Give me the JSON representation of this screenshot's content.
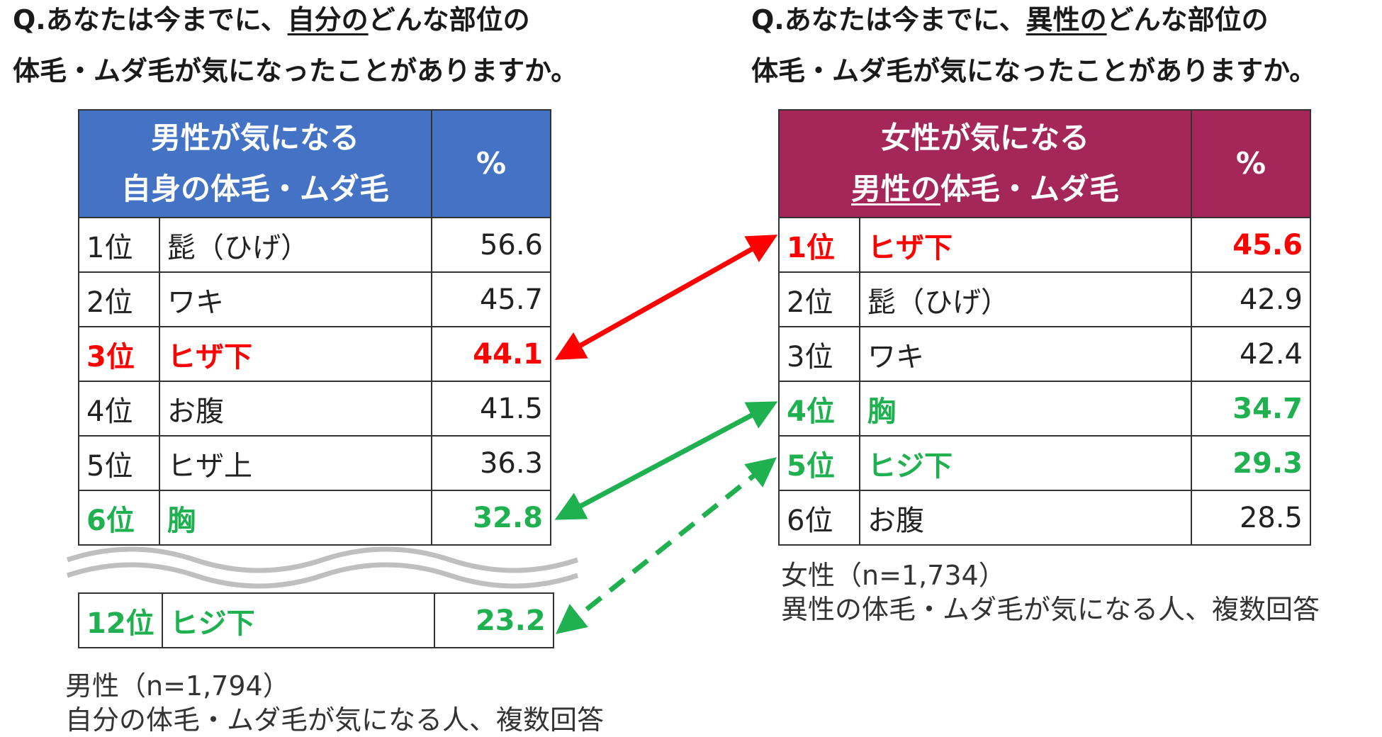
{
  "left": {
    "question_line1_a": "Q.あなたは今までに、",
    "question_line1_ul": "自分の",
    "question_line1_b": "どんな部位の",
    "question_line2": "体毛・ムダ毛が気になったことがありますか。",
    "header_line1": "男性が気になる",
    "header_line2": "自身の体毛・ムダ毛",
    "header_pct": "%",
    "rows": [
      {
        "rank": "1位",
        "item": "髭（ひげ）",
        "pct": "56.6"
      },
      {
        "rank": "2位",
        "item": "ワキ",
        "pct": "45.7"
      },
      {
        "rank": "3位",
        "item": "ヒザ下",
        "pct": "44.1"
      },
      {
        "rank": "4位",
        "item": "お腹",
        "pct": "41.5"
      },
      {
        "rank": "5位",
        "item": "ヒザ上",
        "pct": "36.3"
      },
      {
        "rank": "6位",
        "item": "胸",
        "pct": "32.8"
      }
    ],
    "extra_row": {
      "rank": "12位",
      "item": "ヒジ下",
      "pct": "23.2"
    },
    "note_line1": "男性（n=1,794）",
    "note_line2": "自分の体毛・ムダ毛が気になる人、複数回答"
  },
  "right": {
    "question_line1_a": "Q.あなたは今までに、",
    "question_line1_ul": "異性の",
    "question_line1_b": "どんな部位の",
    "question_line2": "体毛・ムダ毛が気になったことがありますか。",
    "header_line1": "女性が気になる",
    "header_line2_ul": "男性の",
    "header_line2_rest": "体毛・ムダ毛",
    "header_pct": "%",
    "rows": [
      {
        "rank": "1位",
        "item": "ヒザ下",
        "pct": "45.6"
      },
      {
        "rank": "2位",
        "item": "髭（ひげ）",
        "pct": "42.9"
      },
      {
        "rank": "3位",
        "item": "ワキ",
        "pct": "42.4"
      },
      {
        "rank": "4位",
        "item": "胸",
        "pct": "34.7"
      },
      {
        "rank": "5位",
        "item": "ヒジ下",
        "pct": "29.3"
      },
      {
        "rank": "6位",
        "item": "お腹",
        "pct": "28.5"
      }
    ],
    "note_line1": "女性（n=1,734）",
    "note_line2": "異性の体毛・ムダ毛が気になる人、複数回答"
  },
  "colors": {
    "male_header": "#4472c4",
    "female_header": "#a5275a",
    "highlight_red": "#ff0000",
    "highlight_green": "#1fb04f"
  },
  "chart_data": [
    {
      "type": "table",
      "columns": [
        "男性が気になる自身の体毛・ムダ毛",
        "%"
      ],
      "categories": [
        "髭（ひげ）",
        "ワキ",
        "ヒザ下",
        "お腹",
        "ヒザ上",
        "胸",
        "ヒジ下"
      ],
      "ranks": [
        "1位",
        "2位",
        "3位",
        "4位",
        "5位",
        "6位",
        "12位"
      ],
      "values": [
        56.6,
        45.7,
        44.1,
        41.5,
        36.3,
        32.8,
        23.2
      ]
    },
    {
      "type": "table",
      "columns": [
        "女性が気になる男性の体毛・ムダ毛",
        "%"
      ],
      "categories": [
        "ヒザ下",
        "髭（ひげ）",
        "ワキ",
        "胸",
        "ヒジ下",
        "お腹"
      ],
      "ranks": [
        "1位",
        "2位",
        "3位",
        "4位",
        "5位",
        "6位"
      ],
      "values": [
        45.6,
        42.9,
        42.4,
        34.7,
        29.3,
        28.5
      ]
    }
  ]
}
